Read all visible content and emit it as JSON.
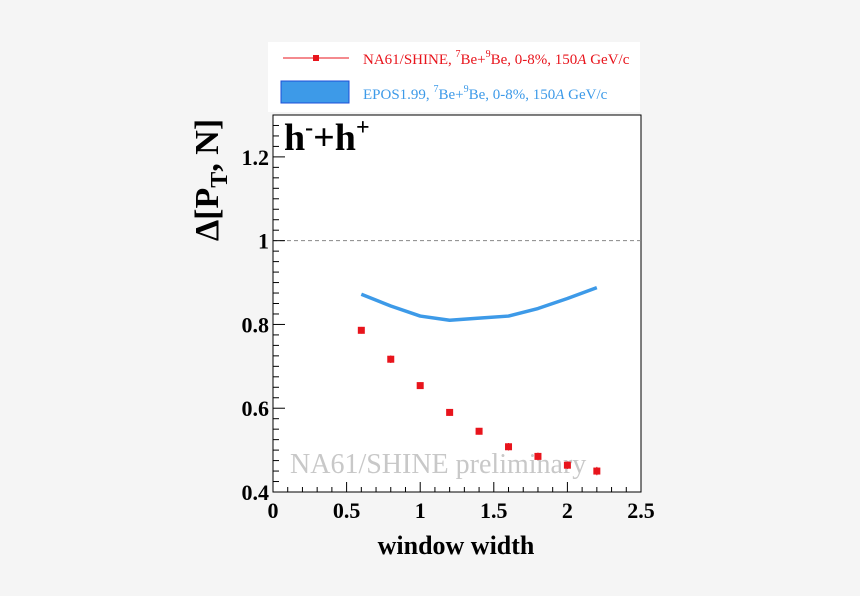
{
  "chart_data": {
    "type": "scatter",
    "title": "h-+h+",
    "title_parts": {
      "base1": "h",
      "sup1": "-",
      "plus": "+",
      "base2": "h",
      "sup2": "+"
    },
    "xlabel": "window width",
    "ylabel": {
      "delta": "Δ[P",
      "sub": "T",
      "rest": ", N]"
    },
    "xlim": [
      0,
      2.5
    ],
    "ylim": [
      0.4,
      1.3
    ],
    "x_ticks": [
      "0",
      "0.5",
      "1",
      "1.5",
      "2",
      "2.5"
    ],
    "y_ticks": [
      "0.4",
      "0.6",
      "0.8",
      "1",
      "1.2"
    ],
    "reference_line": 1.0,
    "watermark": "NA61/SHINE preliminary",
    "legend": {
      "placement": "top",
      "entries": [
        {
          "name": "NA61/SHINE, ⁷Be+⁹Be, 0-8%, 150A GeV/c",
          "prefix": "NA61/SHINE,  ",
          "sup1": "7",
          "mid": "Be+",
          "sup2": "9",
          "suffix": "Be, 0-8%, 150",
          "italic": "A",
          "end": " GeV/c",
          "color": "#e8141c"
        },
        {
          "name": "EPOS1.99, ⁷Be+⁹Be, 0-8%, 150A GeV/c",
          "prefix": "EPOS1.99,  ",
          "sup1": "7",
          "mid": "Be+",
          "sup2": "9",
          "suffix": "Be, 0-8%, 150",
          "italic": "A",
          "end": " GeV/c",
          "color": "#3d9ae8"
        }
      ]
    },
    "series": [
      {
        "name": "NA61/SHINE, 7Be+9Be, 0-8%, 150A GeV/c",
        "kind": "points",
        "color": "#e8141c",
        "x": [
          0.6,
          0.8,
          1.0,
          1.2,
          1.4,
          1.6,
          1.8,
          2.0,
          2.2
        ],
        "y": [
          0.786,
          0.717,
          0.654,
          0.59,
          0.545,
          0.508,
          0.485,
          0.464,
          0.45
        ],
        "err": [
          0.008,
          0.009,
          0.008,
          0.008,
          0.008,
          0.009,
          0.009,
          0.009,
          0.01
        ]
      },
      {
        "name": "EPOS1.99, 7Be+9Be, 0-8%, 150A GeV/c",
        "kind": "line",
        "color": "#3d9ae8",
        "x": [
          0.6,
          0.8,
          1.0,
          1.2,
          1.4,
          1.6,
          1.8,
          2.0,
          2.2
        ],
        "y": [
          0.872,
          0.844,
          0.82,
          0.81,
          0.815,
          0.82,
          0.838,
          0.862,
          0.888
        ]
      }
    ]
  }
}
